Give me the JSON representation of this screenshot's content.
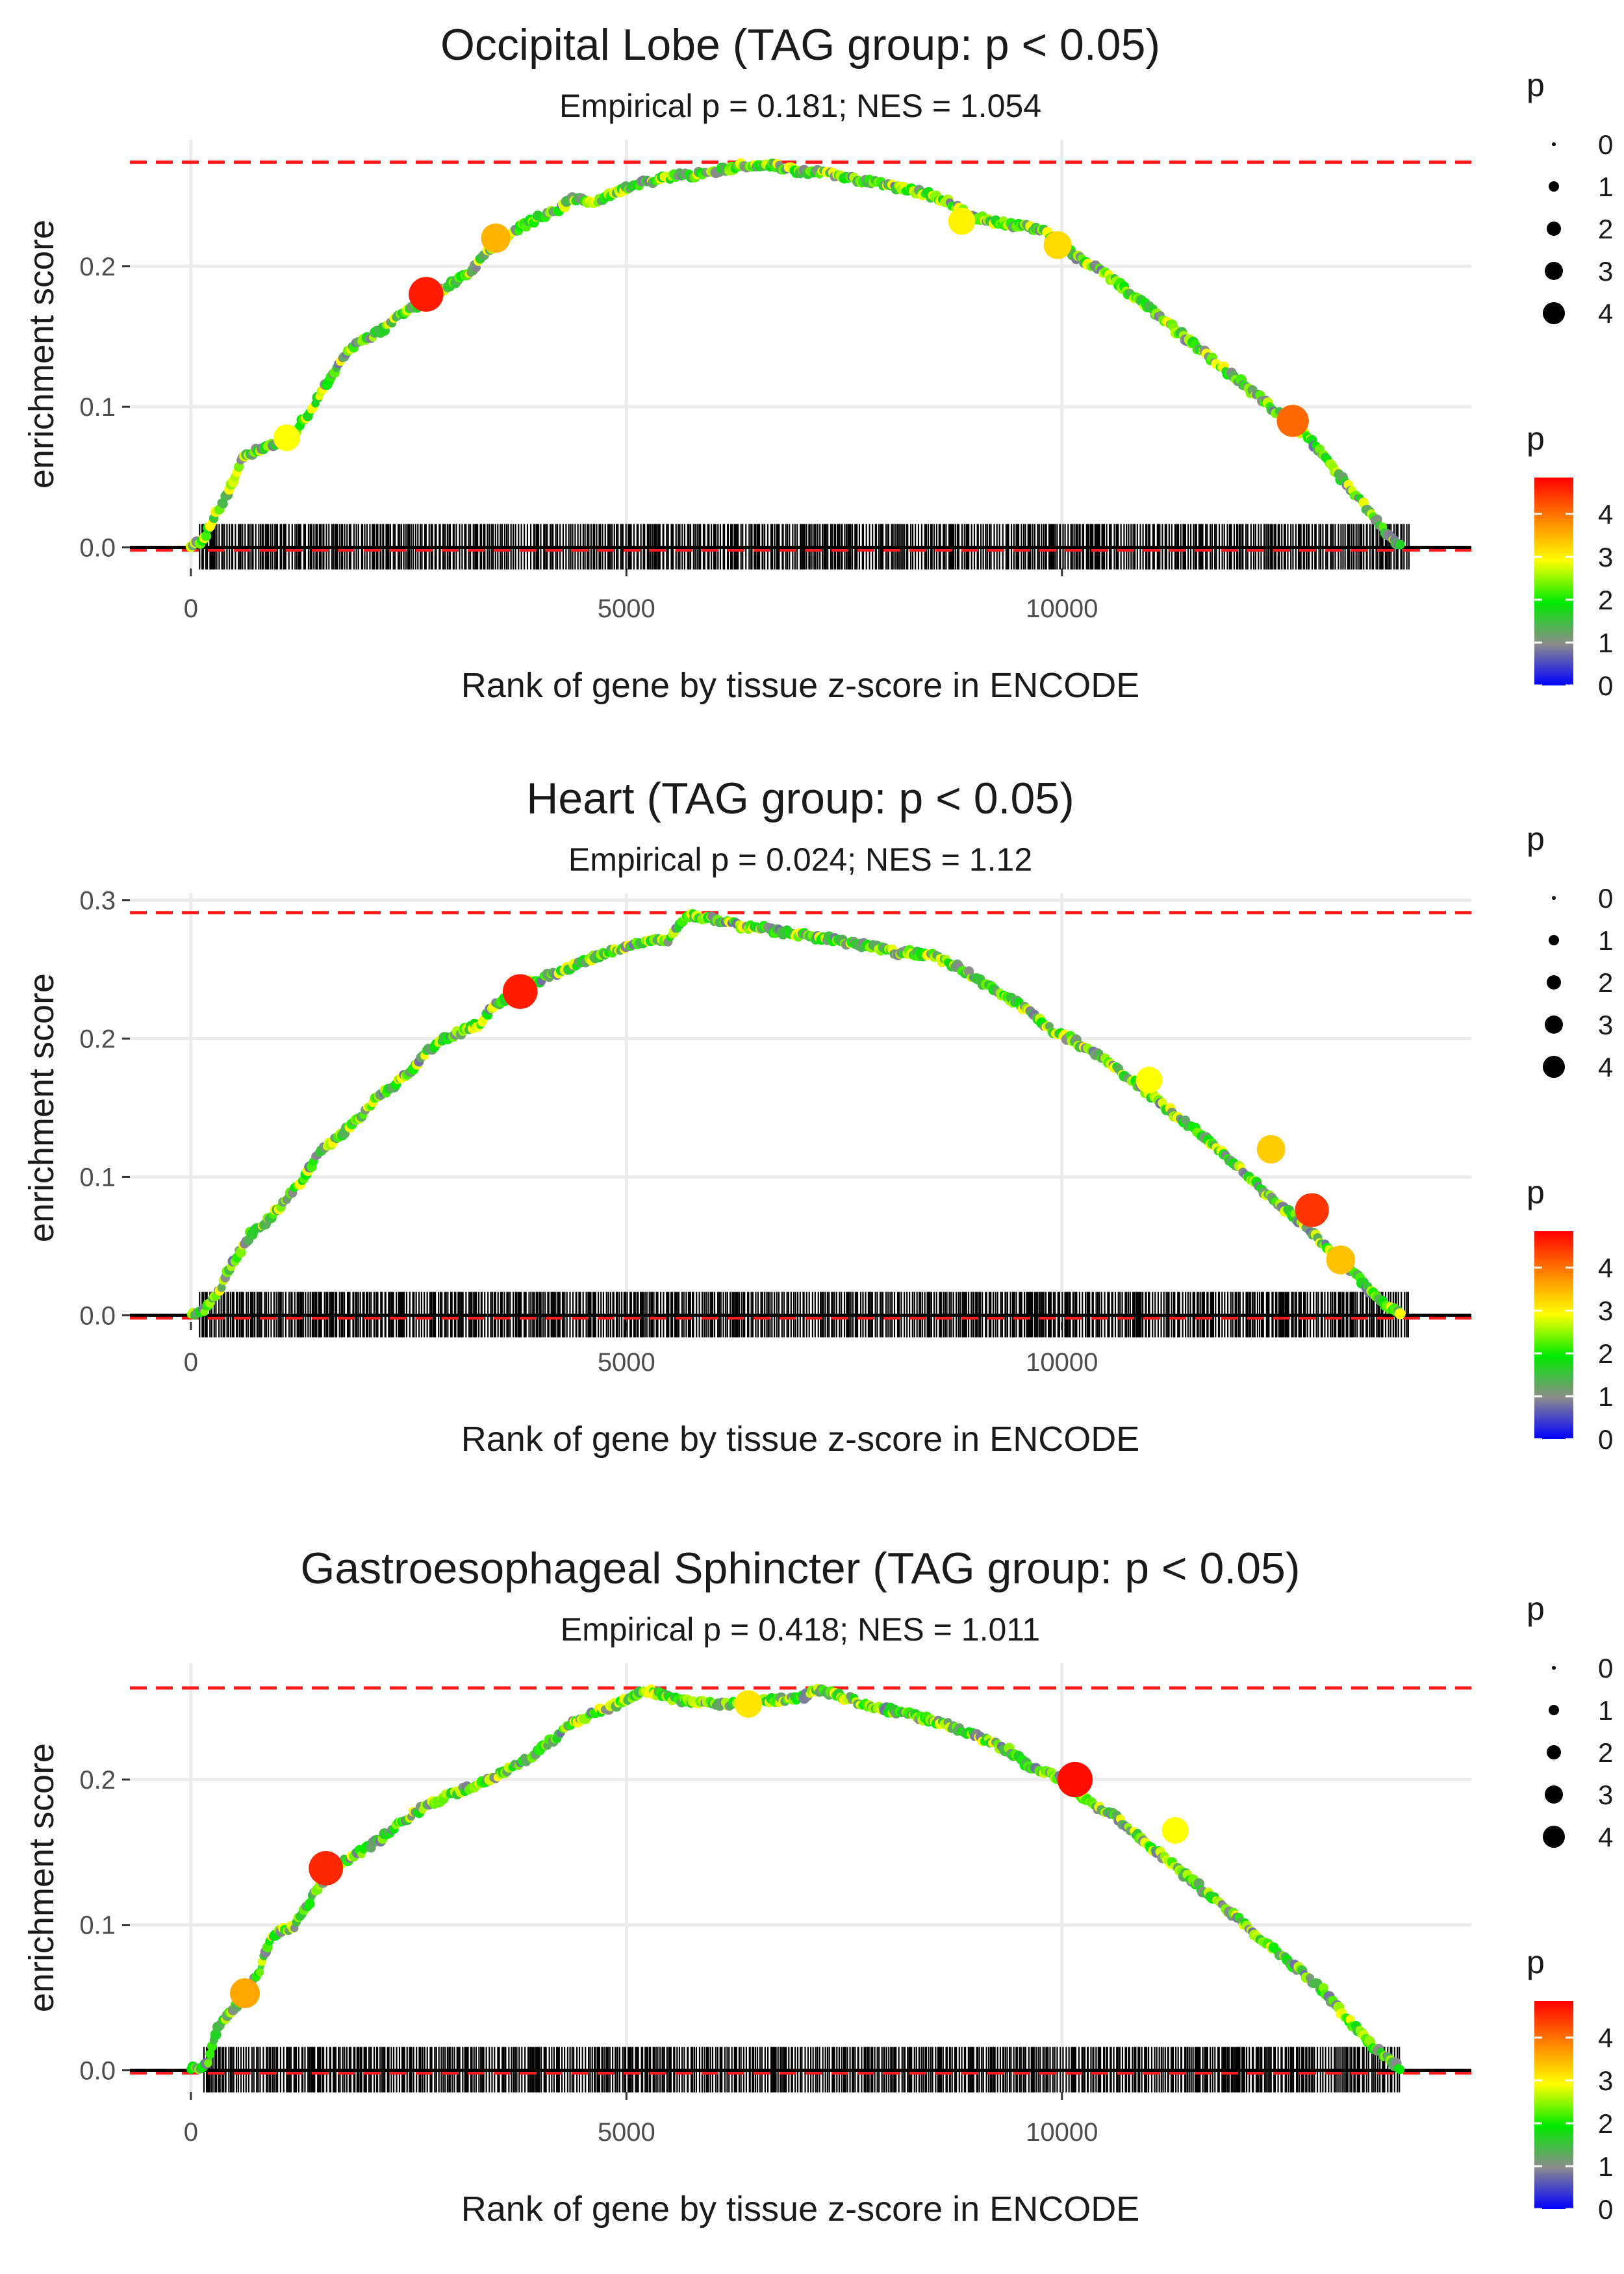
{
  "chart_data": [
    {
      "type": "line",
      "title": "Occipital Lobe (TAG group: p < 0.05)",
      "subtitle": "Empirical p = 0.181; NES = 1.054",
      "xlabel": "Rank of gene by tissue z-score in ENCODE",
      "ylabel": "enrichment score",
      "xlim": [
        -700,
        14700
      ],
      "ylim": [
        -0.015,
        0.29
      ],
      "x_ticks": [
        0,
        5000,
        10000
      ],
      "x_tick_labels": [
        "0",
        "5000",
        "10000"
      ],
      "y_ticks": [
        0.0,
        0.1,
        0.2
      ],
      "y_tick_labels": [
        "0.0",
        "0.1",
        "0.2"
      ],
      "max_es": 0.274,
      "rug_start": 100,
      "rug_end": 14000,
      "series": [
        {
          "name": "running enrichment score",
          "x": [
            0,
            150,
            250,
            400,
            600,
            800,
            1000,
            1200,
            1400,
            1600,
            1800,
            2000,
            2200,
            2400,
            2600,
            2800,
            3000,
            3200,
            3400,
            3600,
            3800,
            4000,
            4200,
            4400,
            4600,
            4800,
            5000,
            5200,
            5400,
            5600,
            5800,
            6000,
            6200,
            6400,
            6600,
            6800,
            7000,
            7200,
            7400,
            7600,
            7800,
            8000,
            8200,
            8400,
            8600,
            8800,
            9000,
            9200,
            9400,
            9600,
            9800,
            10000,
            10200,
            10400,
            10600,
            10800,
            11000,
            11200,
            11400,
            11600,
            11800,
            12000,
            12200,
            12400,
            12600,
            12800,
            13000,
            13200,
            13400,
            13600,
            13800,
            13900
          ],
          "y": [
            0,
            0.005,
            0.02,
            0.035,
            0.065,
            0.07,
            0.075,
            0.082,
            0.1,
            0.12,
            0.14,
            0.148,
            0.155,
            0.165,
            0.172,
            0.18,
            0.188,
            0.195,
            0.21,
            0.22,
            0.228,
            0.235,
            0.24,
            0.248,
            0.245,
            0.25,
            0.255,
            0.26,
            0.262,
            0.265,
            0.265,
            0.268,
            0.27,
            0.272,
            0.273,
            0.27,
            0.268,
            0.267,
            0.265,
            0.262,
            0.26,
            0.258,
            0.255,
            0.252,
            0.248,
            0.242,
            0.235,
            0.232,
            0.23,
            0.228,
            0.225,
            0.215,
            0.205,
            0.198,
            0.19,
            0.18,
            0.17,
            0.16,
            0.15,
            0.14,
            0.13,
            0.12,
            0.11,
            0.1,
            0.09,
            0.08,
            0.065,
            0.05,
            0.035,
            0.02,
            0.005,
            0
          ]
        }
      ],
      "highlighted_points": [
        {
          "x": 2700,
          "y": 0.18,
          "p": 4.8
        },
        {
          "x": 3500,
          "y": 0.22,
          "p": 3.6
        },
        {
          "x": 12650,
          "y": 0.09,
          "p": 4.2
        },
        {
          "x": 9950,
          "y": 0.215,
          "p": 3.3
        },
        {
          "x": 8850,
          "y": 0.232,
          "p": 3.1
        },
        {
          "x": 1100,
          "y": 0.078,
          "p": 3.0
        }
      ],
      "legend": {
        "size_title": "p",
        "size_labels": [
          "0",
          "1",
          "2",
          "3",
          "4"
        ],
        "color_title": "p",
        "color_labels": [
          "4",
          "3",
          "2",
          "1",
          "0"
        ]
      }
    },
    {
      "type": "line",
      "title": "Heart (TAG group: p < 0.05)",
      "subtitle": "Empirical p = 0.024; NES = 1.12",
      "xlabel": "Rank of gene by tissue z-score in ENCODE",
      "ylabel": "enrichment score",
      "xlim": [
        -700,
        14700
      ],
      "ylim": [
        -0.005,
        0.305
      ],
      "x_ticks": [
        0,
        5000,
        10000
      ],
      "x_tick_labels": [
        "0",
        "5000",
        "10000"
      ],
      "y_ticks": [
        0.0,
        0.1,
        0.2,
        0.3
      ],
      "y_tick_labels": [
        "0.0",
        "0.1",
        "0.2",
        "0.3"
      ],
      "max_es": 0.291,
      "rug_start": 100,
      "rug_end": 14000,
      "series": [
        {
          "name": "running enrichment score",
          "x": [
            0,
            150,
            300,
            500,
            700,
            900,
            1100,
            1300,
            1500,
            1700,
            1900,
            2100,
            2300,
            2500,
            2700,
            2900,
            3100,
            3300,
            3500,
            3700,
            3900,
            4100,
            4300,
            4500,
            4700,
            4900,
            5100,
            5300,
            5500,
            5700,
            5900,
            6100,
            6300,
            6500,
            6700,
            6900,
            7100,
            7300,
            7500,
            7700,
            7900,
            8100,
            8300,
            8500,
            8700,
            8900,
            9100,
            9300,
            9500,
            9700,
            9900,
            10100,
            10300,
            10500,
            10700,
            10900,
            11100,
            11300,
            11500,
            11700,
            11900,
            12100,
            12300,
            12500,
            12700,
            12900,
            13100,
            13300,
            13500,
            13700,
            13900
          ],
          "y": [
            0,
            0.003,
            0.015,
            0.04,
            0.06,
            0.07,
            0.085,
            0.1,
            0.12,
            0.13,
            0.14,
            0.155,
            0.165,
            0.175,
            0.19,
            0.2,
            0.205,
            0.21,
            0.225,
            0.232,
            0.24,
            0.245,
            0.25,
            0.255,
            0.26,
            0.265,
            0.268,
            0.27,
            0.272,
            0.29,
            0.288,
            0.285,
            0.282,
            0.28,
            0.278,
            0.276,
            0.274,
            0.272,
            0.27,
            0.268,
            0.265,
            0.262,
            0.262,
            0.26,
            0.255,
            0.248,
            0.24,
            0.232,
            0.225,
            0.215,
            0.205,
            0.2,
            0.192,
            0.185,
            0.175,
            0.165,
            0.155,
            0.145,
            0.135,
            0.125,
            0.115,
            0.103,
            0.09,
            0.08,
            0.07,
            0.058,
            0.045,
            0.035,
            0.02,
            0.008,
            0
          ]
        }
      ],
      "highlighted_points": [
        {
          "x": 3780,
          "y": 0.234,
          "p": 4.8
        },
        {
          "x": 12870,
          "y": 0.076,
          "p": 4.6
        },
        {
          "x": 12400,
          "y": 0.12,
          "p": 3.4
        },
        {
          "x": 13200,
          "y": 0.04,
          "p": 3.5
        },
        {
          "x": 11000,
          "y": 0.17,
          "p": 3.0
        }
      ],
      "legend": {
        "size_title": "p",
        "size_labels": [
          "0",
          "1",
          "2",
          "3",
          "4"
        ],
        "color_title": "p",
        "color_labels": [
          "4",
          "3",
          "2",
          "1",
          "0"
        ]
      }
    },
    {
      "type": "line",
      "title": "Gastroesophageal Sphincter (TAG group: p < 0.05)",
      "subtitle": "Empirical p = 0.418; NES = 1.011",
      "xlabel": "Rank of gene by tissue z-score in ENCODE",
      "ylabel": "enrichment score",
      "xlim": [
        -700,
        14700
      ],
      "ylim": [
        -0.015,
        0.28
      ],
      "x_ticks": [
        0,
        5000,
        10000
      ],
      "x_tick_labels": [
        "0",
        "5000",
        "10000"
      ],
      "y_ticks": [
        0.0,
        0.1,
        0.2
      ],
      "y_tick_labels": [
        "0.0",
        "0.1",
        "0.2"
      ],
      "max_es": 0.263,
      "rug_start": 150,
      "rug_end": 13900,
      "series": [
        {
          "name": "running enrichment score",
          "x": [
            0,
            200,
            300,
            450,
            600,
            800,
            900,
            1000,
            1200,
            1400,
            1600,
            1800,
            2000,
            2200,
            2400,
            2600,
            2800,
            3000,
            3200,
            3400,
            3600,
            3800,
            4000,
            4200,
            4400,
            4600,
            4800,
            5000,
            5200,
            5400,
            5600,
            5800,
            6000,
            6200,
            6400,
            6600,
            6800,
            7000,
            7200,
            7400,
            7600,
            7800,
            8000,
            8200,
            8400,
            8600,
            8800,
            9000,
            9200,
            9400,
            9600,
            9800,
            10000,
            10200,
            10400,
            10600,
            10800,
            11000,
            11200,
            11400,
            11600,
            11800,
            12000,
            12200,
            12400,
            12600,
            12800,
            13000,
            13200,
            13400,
            13600,
            13800,
            13900
          ],
          "y": [
            0,
            0.005,
            0.03,
            0.04,
            0.05,
            0.07,
            0.09,
            0.095,
            0.1,
            0.12,
            0.138,
            0.145,
            0.152,
            0.16,
            0.17,
            0.178,
            0.185,
            0.19,
            0.195,
            0.2,
            0.205,
            0.212,
            0.22,
            0.23,
            0.24,
            0.245,
            0.25,
            0.255,
            0.262,
            0.258,
            0.255,
            0.253,
            0.252,
            0.252,
            0.253,
            0.254,
            0.255,
            0.256,
            0.262,
            0.258,
            0.255,
            0.25,
            0.248,
            0.245,
            0.242,
            0.24,
            0.235,
            0.23,
            0.225,
            0.22,
            0.21,
            0.205,
            0.2,
            0.19,
            0.18,
            0.175,
            0.165,
            0.155,
            0.145,
            0.135,
            0.125,
            0.115,
            0.105,
            0.095,
            0.085,
            0.075,
            0.065,
            0.055,
            0.04,
            0.028,
            0.015,
            0.005,
            0
          ]
        }
      ],
      "highlighted_points": [
        {
          "x": 1550,
          "y": 0.139,
          "p": 4.7
        },
        {
          "x": 10150,
          "y": 0.2,
          "p": 4.9
        },
        {
          "x": 620,
          "y": 0.053,
          "p": 3.7
        },
        {
          "x": 6400,
          "y": 0.252,
          "p": 3.2
        },
        {
          "x": 11300,
          "y": 0.165,
          "p": 3.0
        }
      ],
      "legend": {
        "size_title": "p",
        "size_labels": [
          "0",
          "1",
          "2",
          "3",
          "4"
        ],
        "color_title": "p",
        "color_labels": [
          "4",
          "3",
          "2",
          "1",
          "0"
        ]
      }
    }
  ]
}
